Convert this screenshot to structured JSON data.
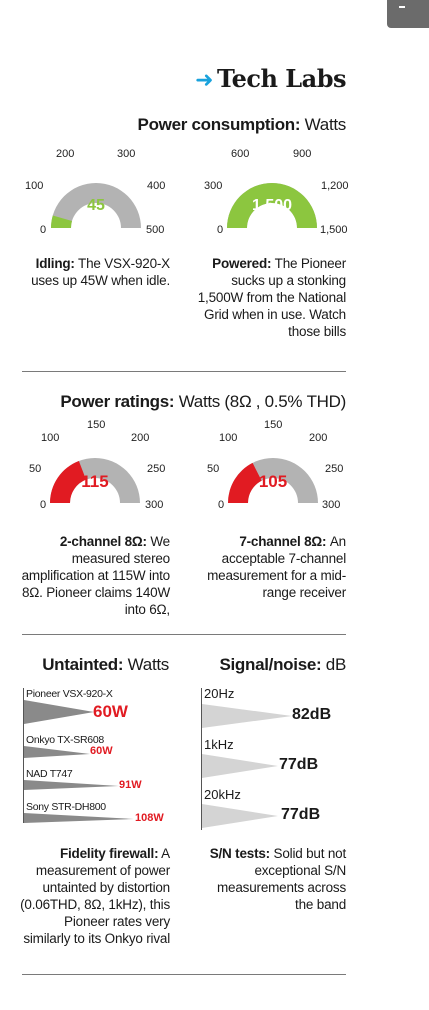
{
  "header": {
    "arrow": "➜",
    "title": "Tech Labs"
  },
  "colors": {
    "green": "#8cc63f",
    "red": "#e11b22",
    "grey": "#b3b3b3",
    "accent": "#19a2dc"
  },
  "consumption": {
    "title_bold": "Power consumption:",
    "title_rest": " Watts",
    "idle_gauge": {
      "ticks": [
        "0",
        "100",
        "200",
        "300",
        "400",
        "500"
      ],
      "max": 500,
      "value": 45,
      "value_label": "45"
    },
    "powered_gauge": {
      "ticks": [
        "0",
        "300",
        "600",
        "900",
        "1,200",
        "1,500"
      ],
      "max": 1500,
      "value": 1500,
      "value_label": "1,500"
    },
    "idle_desc": {
      "bold": "Idling:",
      "text": " The VSX-920-X uses up 45W when idle."
    },
    "powered_desc": {
      "bold": "Powered:",
      "text": " The Pioneer sucks up a stonking 1,500W from the National Grid when in use. Watch those bills"
    }
  },
  "ratings": {
    "title_bold": "Power ratings:",
    "title_rest": " Watts (8Ω , 0.5% THD)",
    "stereo_gauge": {
      "ticks": [
        "0",
        "50",
        "100",
        "150",
        "200",
        "250",
        "300"
      ],
      "max": 300,
      "value": 115,
      "value_label": "115"
    },
    "multi_gauge": {
      "ticks": [
        "0",
        "50",
        "100",
        "150",
        "200",
        "250",
        "300"
      ],
      "max": 300,
      "value": 105,
      "value_label": "105"
    },
    "stereo_desc": {
      "bold": "2-channel 8Ω:",
      "text": " We measured stereo amplification at 115W into 8Ω. Pioneer claims 140W into 6Ω,"
    },
    "multi_desc": {
      "bold": "7-channel 8Ω:",
      "text": " An acceptable 7-channel measurement for a mid-range receiver"
    }
  },
  "untainted": {
    "title_bold": "Untainted:",
    "title_rest": " Watts",
    "max": 60,
    "bars": [
      {
        "name": "Pioneer VSX-920-X",
        "value": 60,
        "label": "60W"
      },
      {
        "name": "Onkyo TX-SR608",
        "value": 60,
        "label": "60W"
      },
      {
        "name": "NAD T747",
        "value": 91,
        "label": "91W"
      },
      {
        "name": "Sony STR-DH800",
        "value": 108,
        "label": "108W"
      }
    ],
    "desc": {
      "bold": "Fidelity firewall:",
      "text": " A measurement of power untainted by distortion (0.06THD, 8Ω, 1kHz), this Pioneer rates very similarly to its Onkyo rival"
    }
  },
  "signal_noise": {
    "title_bold": "Signal/noise:",
    "title_rest": " dB",
    "bars": [
      {
        "name": "20Hz",
        "value": 82,
        "label": "82dB"
      },
      {
        "name": "1kHz",
        "value": 77,
        "label": "77dB"
      },
      {
        "name": "20kHz",
        "value": 77,
        "label": "77dB"
      }
    ],
    "desc": {
      "bold": "S/N tests:",
      "text": " Solid but not exceptional S/N measurements across the band"
    }
  }
}
